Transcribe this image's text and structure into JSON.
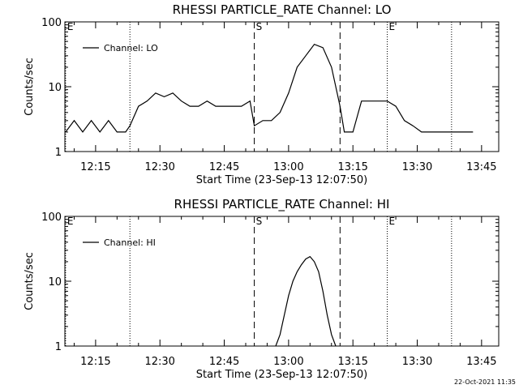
{
  "chart_data": [
    {
      "type": "line",
      "title": "RHESSI PARTICLE_RATE Channel: LO",
      "xlabel": "Start Time (23-Sep-13 12:07:50)",
      "ylabel": "Counts/sec",
      "y_scale": "log",
      "ylim": [
        1,
        100
      ],
      "y_ticks": [
        "1",
        "10",
        "100"
      ],
      "xlim": [
        "12:07:50",
        "13:49:00"
      ],
      "x_ticks": [
        "12:15",
        "12:30",
        "12:45",
        "13:00",
        "13:15",
        "13:30",
        "13:45"
      ],
      "legend": {
        "label": "Channel: LO",
        "position": "top-left"
      },
      "markers": [
        {
          "time": "12:08",
          "style": "dotted",
          "label": "E"
        },
        {
          "time": "12:23",
          "style": "dotted",
          "label": ""
        },
        {
          "time": "12:52",
          "style": "dashed",
          "label": "S"
        },
        {
          "time": "13:12",
          "style": "dashed",
          "label": ""
        },
        {
          "time": "13:23",
          "style": "dotted",
          "label": "E"
        },
        {
          "time": "13:38",
          "style": "dotted",
          "label": ""
        }
      ],
      "series": [
        {
          "name": "Channel: LO",
          "x": [
            "12:08",
            "12:10",
            "12:12",
            "12:14",
            "12:16",
            "12:18",
            "12:20",
            "12:22",
            "12:23",
            "12:25",
            "12:27",
            "12:29",
            "12:31",
            "12:33",
            "12:35",
            "12:37",
            "12:39",
            "12:41",
            "12:43",
            "12:45",
            "12:47",
            "12:49",
            "12:51",
            "12:52",
            "12:54",
            "12:56",
            "12:58",
            "13:00",
            "13:02",
            "13:04",
            "13:06",
            "13:08",
            "13:10",
            "13:12",
            "13:13",
            "13:15",
            "13:17",
            "13:19",
            "13:21",
            "13:23",
            "13:25",
            "13:27",
            "13:29",
            "13:31",
            "13:33",
            "13:35",
            "13:37",
            "13:39",
            "13:41",
            "13:43"
          ],
          "y": [
            2,
            3,
            2,
            3,
            2,
            3,
            2,
            2,
            2.5,
            5,
            6,
            8,
            7,
            8,
            6,
            5,
            5,
            6,
            5,
            5,
            5,
            5,
            6,
            2.5,
            3,
            3,
            4,
            8,
            20,
            30,
            45,
            40,
            20,
            5,
            2,
            2,
            6,
            6,
            6,
            6,
            5,
            3,
            2.5,
            2,
            2,
            2,
            2,
            2,
            2,
            2
          ]
        }
      ]
    },
    {
      "type": "line",
      "title": "RHESSI PARTICLE_RATE Channel: HI",
      "xlabel": "Start Time (23-Sep-13 12:07:50)",
      "ylabel": "Counts/sec",
      "y_scale": "log",
      "ylim": [
        1,
        100
      ],
      "y_ticks": [
        "1",
        "10",
        "100"
      ],
      "xlim": [
        "12:07:50",
        "13:49:00"
      ],
      "x_ticks": [
        "12:15",
        "12:30",
        "12:45",
        "13:00",
        "13:15",
        "13:30",
        "13:45"
      ],
      "legend": {
        "label": "Channel: HI",
        "position": "top-left"
      },
      "markers": [
        {
          "time": "12:08",
          "style": "dotted",
          "label": "E"
        },
        {
          "time": "12:23",
          "style": "dotted",
          "label": ""
        },
        {
          "time": "12:52",
          "style": "dashed",
          "label": "S"
        },
        {
          "time": "13:12",
          "style": "dashed",
          "label": ""
        },
        {
          "time": "13:23",
          "style": "dotted",
          "label": "E"
        },
        {
          "time": "13:38",
          "style": "dotted",
          "label": ""
        }
      ],
      "series": [
        {
          "name": "Channel: HI",
          "x": [
            "12:57",
            "12:58",
            "12:59",
            "13:00",
            "13:01",
            "13:02",
            "13:03",
            "13:04",
            "13:05",
            "13:06",
            "13:07",
            "13:08",
            "13:09",
            "13:10",
            "13:11"
          ],
          "y": [
            1,
            1.5,
            3,
            6,
            10,
            14,
            18,
            22,
            24,
            20,
            14,
            7,
            3,
            1.5,
            1
          ]
        }
      ]
    }
  ],
  "footer": {
    "timestamp": "22-Oct-2021 11:35"
  }
}
